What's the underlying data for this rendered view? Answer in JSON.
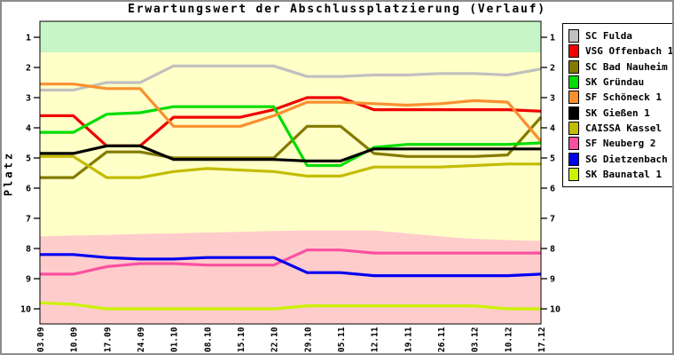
{
  "window": {
    "border_color": "#8C8C8C",
    "background": "#FFFFFF"
  },
  "chart_data": {
    "type": "line",
    "title": "Erwartungswert der Abschlussplatzierung (Verlauf)",
    "ylabel": "Platz",
    "y_axis_inverted": true,
    "ylim": [
      0.5,
      10.5
    ],
    "y_ticks": [
      "1",
      "2",
      "3",
      "4",
      "5",
      "6",
      "7",
      "8",
      "9",
      "10"
    ],
    "x_tick_labels": [
      "03.09",
      "10.09",
      "17.09",
      "24.09",
      "01.10",
      "08.10",
      "15.10",
      "22.10",
      "29.10",
      "05.11",
      "12.11",
      "19.11",
      "26.11",
      "03.12",
      "10.12",
      "17.12"
    ],
    "legend_position": "right",
    "grid": false,
    "bands": {
      "promotion_zone": {
        "color": "#C6F6C6",
        "from_platz": 0.5,
        "to_platz": 1.5
      },
      "middle_zone": {
        "color": "#FFFFC8"
      },
      "relegation_zone": {
        "color": "#FFCCCC",
        "to_platz": 10.5,
        "boundary_by_week": [
          7.6,
          7.57,
          7.55,
          7.52,
          7.5,
          7.47,
          7.45,
          7.42,
          7.4,
          7.4,
          7.4,
          7.5,
          7.6,
          7.68,
          7.72,
          7.75
        ]
      }
    },
    "series": [
      {
        "name": "SC Fulda",
        "color": "#C0C0C0",
        "values": [
          2.75,
          2.75,
          2.5,
          2.5,
          1.95,
          1.95,
          1.95,
          1.95,
          2.3,
          2.3,
          2.25,
          2.25,
          2.2,
          2.2,
          2.25,
          2.05
        ]
      },
      {
        "name": "VSG Offenbach 1",
        "color": "#F00000",
        "values": [
          3.6,
          3.6,
          4.6,
          4.6,
          3.65,
          3.65,
          3.65,
          3.4,
          3.0,
          3.0,
          3.4,
          3.4,
          3.4,
          3.4,
          3.4,
          3.45
        ]
      },
      {
        "name": "SC Bad Nauheim",
        "color": "#847A00",
        "values": [
          5.65,
          5.65,
          4.8,
          4.8,
          5.0,
          5.0,
          5.0,
          5.0,
          3.95,
          3.95,
          4.85,
          4.95,
          4.95,
          4.95,
          4.9,
          3.65
        ]
      },
      {
        "name": "SK Gründau",
        "color": "#00DD00",
        "values": [
          4.15,
          4.15,
          3.55,
          3.5,
          3.3,
          3.3,
          3.3,
          3.3,
          5.25,
          5.25,
          4.65,
          4.55,
          4.55,
          4.55,
          4.55,
          4.5
        ]
      },
      {
        "name": "SF Schöneck 1",
        "color": "#F89030",
        "values": [
          2.55,
          2.55,
          2.7,
          2.7,
          3.95,
          3.95,
          3.95,
          3.6,
          3.15,
          3.15,
          3.2,
          3.25,
          3.2,
          3.1,
          3.15,
          4.45
        ]
      },
      {
        "name": "SK Gießen 1",
        "color": "#000000",
        "values": [
          4.85,
          4.85,
          4.6,
          4.6,
          5.05,
          5.05,
          5.05,
          5.05,
          5.1,
          5.1,
          4.7,
          4.7,
          4.7,
          4.7,
          4.7,
          4.7
        ]
      },
      {
        "name": "CAISSA Kassel",
        "color": "#C4BC00",
        "values": [
          4.95,
          4.95,
          5.65,
          5.65,
          5.45,
          5.35,
          5.4,
          5.45,
          5.6,
          5.6,
          5.3,
          5.3,
          5.3,
          5.25,
          5.2,
          5.2
        ]
      },
      {
        "name": "SF Neuberg 2",
        "color": "#FA50A0",
        "values": [
          8.85,
          8.85,
          8.6,
          8.5,
          8.5,
          8.55,
          8.55,
          8.55,
          8.05,
          8.05,
          8.15,
          8.15,
          8.15,
          8.15,
          8.15,
          8.15
        ]
      },
      {
        "name": "SG Dietzenbach 1",
        "color": "#0000F0",
        "values": [
          8.2,
          8.2,
          8.3,
          8.35,
          8.35,
          8.3,
          8.3,
          8.3,
          8.8,
          8.8,
          8.9,
          8.9,
          8.9,
          8.9,
          8.9,
          8.85
        ]
      },
      {
        "name": "SK Baunatal 1",
        "color": "#CCF200",
        "values": [
          9.8,
          9.85,
          10.0,
          10.0,
          10.0,
          10.0,
          10.0,
          10.0,
          9.9,
          9.9,
          9.9,
          9.9,
          9.9,
          9.9,
          10.0,
          10.0
        ]
      }
    ]
  }
}
